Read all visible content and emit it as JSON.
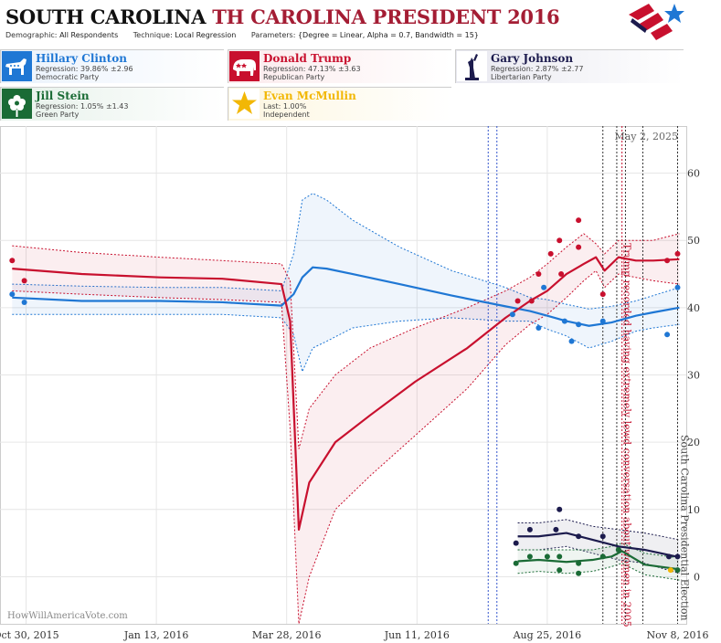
{
  "header": {
    "title_state": "SOUTH CAROLINA",
    "title_rest": "TH CAROLINA PRESIDENT 2016",
    "demographic_label": "Demographic:",
    "demographic_value": "All Respondents",
    "technique_label": "Technique:",
    "technique_value": "Local Regression",
    "parameters_label": "Parameters:",
    "parameters_value": "{Degree = Linear, Alpha = 0.7, Bandwidth = 15}"
  },
  "candidates": [
    {
      "name": "Hillary Clinton",
      "stat": "Regression: 39.86% ±2.96",
      "party": "Democratic Party",
      "color": "#1f77d4",
      "icon": "donkey-icon"
    },
    {
      "name": "Donald Trump",
      "stat": "Regression: 47.13% ±3.63",
      "party": "Republican Party",
      "color": "#c8102e",
      "icon": "elephant-icon"
    },
    {
      "name": "Gary Johnson",
      "stat": "Regression: 2.87% ±2.77",
      "party": "Libertarian Party",
      "color": "#1c1b4d",
      "icon": "liberty-icon"
    },
    {
      "name": "Jill Stein",
      "stat": "Regression: 1.05% ±1.43",
      "party": "Green Party",
      "color": "#1a6b35",
      "icon": "flower-icon"
    },
    {
      "name": "Evan McMullin",
      "stat": "Last: 1.00%",
      "party": "Independent",
      "color": "#f2b705",
      "icon": "star-icon"
    }
  ],
  "chart_data": {
    "type": "line",
    "date_label": "May 2, 2025",
    "watermark": "HowWillAmericaVote.com",
    "ylim": [
      -7,
      67
    ],
    "yticks": [
      0,
      10,
      20,
      30,
      40,
      50,
      60
    ],
    "xlim": [
      "2015-10-15",
      "2016-11-13"
    ],
    "xticks": [
      {
        "date": "2015-10-30",
        "label": "Oct 30, 2015"
      },
      {
        "date": "2016-01-13",
        "label": "Jan 13, 2016"
      },
      {
        "date": "2016-03-28",
        "label": "Mar 28, 2016"
      },
      {
        "date": "2016-06-11",
        "label": "Jun 11, 2016"
      },
      {
        "date": "2016-08-25",
        "label": "Aug 25, 2016"
      },
      {
        "date": "2016-11-08",
        "label": "Nov 8, 2016"
      }
    ],
    "grid": true,
    "events": [
      {
        "date": "2016-07-22",
        "style": "blue-dotted",
        "label": ""
      },
      {
        "date": "2016-07-27",
        "style": "blue-dotted",
        "label": ""
      },
      {
        "date": "2016-09-26",
        "style": "black-dotted",
        "label": ""
      },
      {
        "date": "2016-10-04",
        "style": "black-dotted",
        "label": ""
      },
      {
        "date": "2016-10-07",
        "style": "red-dotted",
        "label": "Trump recorded having extremely lewd conversation about women in 2005"
      },
      {
        "date": "2016-10-09",
        "style": "black-dotted",
        "label": ""
      },
      {
        "date": "2016-10-19",
        "style": "black-dotted",
        "label": ""
      },
      {
        "date": "2016-11-08",
        "style": "black-dotted",
        "label": "South Carolina Presidential Election"
      }
    ],
    "series": [
      {
        "name": "Hillary Clinton",
        "color": "#1f77d4",
        "x": [
          "2015-10-22",
          "2015-12-01",
          "2016-01-15",
          "2016-02-20",
          "2016-03-25",
          "2016-04-01",
          "2016-04-06",
          "2016-04-12",
          "2016-04-20",
          "2016-05-05",
          "2016-06-01",
          "2016-07-01",
          "2016-08-01",
          "2016-08-15",
          "2016-08-25",
          "2016-09-05",
          "2016-09-18",
          "2016-10-01",
          "2016-10-15",
          "2016-10-25",
          "2016-11-09"
        ],
        "y": [
          41.5,
          41.0,
          41.0,
          40.8,
          40.3,
          42.0,
          44.5,
          46.0,
          45.8,
          45.0,
          43.5,
          41.8,
          40.2,
          39.5,
          38.8,
          38.0,
          37.3,
          37.8,
          38.8,
          39.3,
          40.0
        ],
        "upper": [
          43.5,
          43.2,
          43.0,
          43.0,
          42.5,
          48.0,
          56.0,
          57.0,
          56.0,
          53.0,
          49.0,
          45.5,
          43.0,
          41.5,
          41.2,
          40.5,
          39.8,
          40.2,
          41.0,
          41.8,
          43.0
        ],
        "lower": [
          39.0,
          39.0,
          39.0,
          39.0,
          38.5,
          36.0,
          30.5,
          34.0,
          35.0,
          37.0,
          38.0,
          38.5,
          38.0,
          38.0,
          36.8,
          35.8,
          34.0,
          35.0,
          36.5,
          37.0,
          37.5
        ],
        "points": [
          [
            "2015-10-22",
            42.0
          ],
          [
            "2015-10-29",
            40.8
          ],
          [
            "2016-08-05",
            39.0
          ],
          [
            "2016-08-20",
            37.0
          ],
          [
            "2016-08-23",
            43.0
          ],
          [
            "2016-09-04",
            38.0
          ],
          [
            "2016-09-08",
            35.0
          ],
          [
            "2016-09-12",
            37.5
          ],
          [
            "2016-09-26",
            38.0
          ],
          [
            "2016-11-02",
            36.0
          ],
          [
            "2016-11-08",
            43.0
          ]
        ]
      },
      {
        "name": "Donald Trump",
        "color": "#c8102e",
        "x": [
          "2015-10-22",
          "2015-12-01",
          "2016-01-15",
          "2016-02-20",
          "2016-03-25",
          "2016-03-30",
          "2016-04-04",
          "2016-04-10",
          "2016-04-25",
          "2016-05-15",
          "2016-06-10",
          "2016-07-10",
          "2016-08-01",
          "2016-08-15",
          "2016-08-25",
          "2016-09-05",
          "2016-09-15",
          "2016-09-22",
          "2016-09-27",
          "2016-10-05",
          "2016-10-15",
          "2016-10-25",
          "2016-11-09"
        ],
        "y": [
          45.8,
          45.0,
          44.5,
          44.3,
          43.5,
          38.0,
          7.0,
          14.0,
          20.0,
          24.0,
          29.0,
          34.0,
          38.5,
          41.0,
          42.5,
          45.0,
          46.5,
          47.5,
          45.5,
          47.5,
          47.0,
          47.0,
          47.2
        ],
        "upper": [
          49.2,
          48.2,
          47.5,
          47.0,
          46.5,
          44.0,
          19.0,
          25.0,
          30.0,
          34.0,
          37.0,
          40.0,
          42.5,
          44.5,
          46.5,
          49.0,
          51.0,
          49.5,
          48.0,
          50.0,
          50.0,
          50.0,
          51.0
        ],
        "lower": [
          42.5,
          42.0,
          41.5,
          41.2,
          40.8,
          22.0,
          -7.0,
          0.0,
          10.0,
          15.0,
          21.0,
          28.0,
          34.5,
          37.5,
          39.0,
          41.5,
          44.0,
          45.5,
          43.0,
          45.0,
          44.5,
          44.0,
          43.5
        ],
        "points": [
          [
            "2015-10-22",
            47.0
          ],
          [
            "2015-10-29",
            44.0
          ],
          [
            "2016-08-08",
            41.0
          ],
          [
            "2016-08-16",
            41.0
          ],
          [
            "2016-08-20",
            45.0
          ],
          [
            "2016-08-27",
            48.0
          ],
          [
            "2016-09-01",
            50.0
          ],
          [
            "2016-09-02",
            45.0
          ],
          [
            "2016-09-12",
            53.0
          ],
          [
            "2016-09-12",
            49.0
          ],
          [
            "2016-09-26",
            42.0
          ],
          [
            "2016-11-02",
            47.0
          ],
          [
            "2016-11-08",
            48.0
          ]
        ]
      },
      {
        "name": "Gary Johnson",
        "color": "#1c1b4d",
        "x": [
          "2016-08-08",
          "2016-08-20",
          "2016-09-05",
          "2016-09-20",
          "2016-10-05",
          "2016-10-20",
          "2016-11-09"
        ],
        "y": [
          6.0,
          6.0,
          6.5,
          5.5,
          4.5,
          4.0,
          2.9
        ],
        "upper": [
          8.0,
          8.0,
          8.5,
          7.5,
          7.0,
          6.5,
          5.5
        ],
        "lower": [
          4.0,
          4.0,
          4.5,
          3.5,
          2.5,
          2.0,
          0.5
        ],
        "points": [
          [
            "2016-08-07",
            5.0
          ],
          [
            "2016-08-15",
            7.0
          ],
          [
            "2016-08-30",
            7.0
          ],
          [
            "2016-09-01",
            10.0
          ],
          [
            "2016-09-12",
            6.0
          ],
          [
            "2016-09-26",
            6.0
          ],
          [
            "2016-10-05",
            4.0
          ],
          [
            "2016-11-03",
            3.0
          ],
          [
            "2016-11-08",
            3.0
          ]
        ]
      },
      {
        "name": "Jill Stein",
        "color": "#1a6b35",
        "x": [
          "2016-08-08",
          "2016-08-20",
          "2016-09-05",
          "2016-09-20",
          "2016-10-01",
          "2016-10-07",
          "2016-10-20",
          "2016-11-09"
        ],
        "y": [
          2.3,
          2.5,
          2.2,
          2.5,
          3.0,
          3.8,
          1.8,
          1.1
        ],
        "upper": [
          4.0,
          4.0,
          4.0,
          4.0,
          4.5,
          5.0,
          3.5,
          2.8
        ],
        "lower": [
          0.5,
          0.8,
          0.5,
          0.8,
          1.5,
          2.0,
          0.3,
          -0.5
        ],
        "points": [
          [
            "2016-08-07",
            2.0
          ],
          [
            "2016-08-15",
            3.0
          ],
          [
            "2016-08-25",
            3.0
          ],
          [
            "2016-09-01",
            3.0
          ],
          [
            "2016-09-01",
            1.0
          ],
          [
            "2016-09-12",
            2.0
          ],
          [
            "2016-09-12",
            0.5
          ],
          [
            "2016-09-26",
            3.0
          ],
          [
            "2016-10-05",
            4.0
          ],
          [
            "2016-11-08",
            1.0
          ]
        ]
      },
      {
        "name": "Evan McMullin",
        "color": "#f2b705",
        "x": [],
        "y": [],
        "upper": [],
        "lower": [],
        "points": [
          [
            "2016-11-04",
            1.0
          ]
        ]
      }
    ]
  }
}
